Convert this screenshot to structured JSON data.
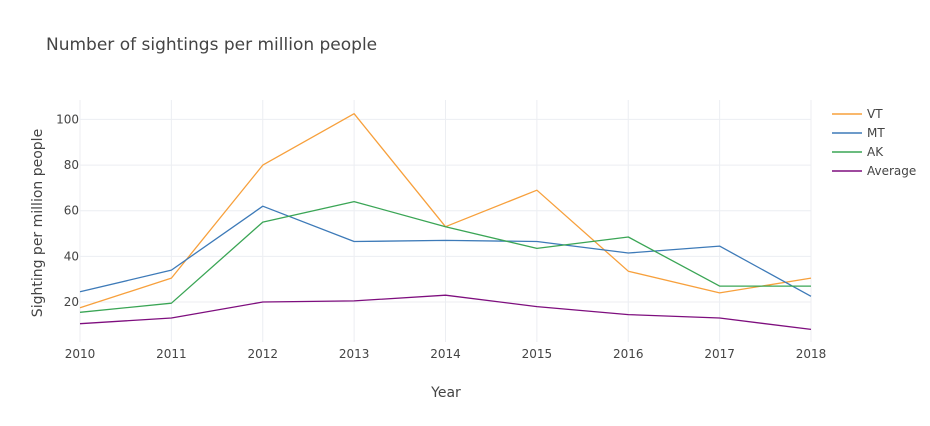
{
  "chart_data": {
    "type": "line",
    "title": "Number of sightings per million people",
    "xlabel": "Year",
    "ylabel": "Sighting per million people",
    "x": [
      2010,
      2011,
      2012,
      2013,
      2014,
      2015,
      2016,
      2017,
      2018
    ],
    "x_tick_labels": [
      "2010",
      "2011",
      "2012",
      "2013",
      "2014",
      "2015",
      "2016",
      "2017",
      "2018"
    ],
    "xlim": [
      2010,
      2018
    ],
    "ylim": [
      2.5,
      108.5
    ],
    "y_ticks": [
      20,
      40,
      60,
      80,
      100
    ],
    "y_tick_labels": [
      "20",
      "40",
      "60",
      "80",
      "100"
    ],
    "grid": true,
    "legend_position": "right",
    "series": [
      {
        "name": "VT",
        "color": "#f7a03c",
        "values": [
          17.5,
          30.5,
          80,
          102.5,
          53,
          69,
          33.5,
          24,
          30.5
        ]
      },
      {
        "name": "MT",
        "color": "#3d7ab8",
        "values": [
          24.5,
          34,
          62,
          46.5,
          47,
          46.5,
          41.5,
          44.5,
          22.5
        ]
      },
      {
        "name": "AK",
        "color": "#3aa555",
        "values": [
          15.5,
          19.5,
          55,
          64,
          53,
          43.5,
          48.5,
          27,
          27
        ]
      },
      {
        "name": "Average",
        "color": "#7e0e7e",
        "values": [
          10.5,
          13,
          20,
          20.5,
          23,
          18,
          14.5,
          13,
          8
        ]
      }
    ]
  }
}
